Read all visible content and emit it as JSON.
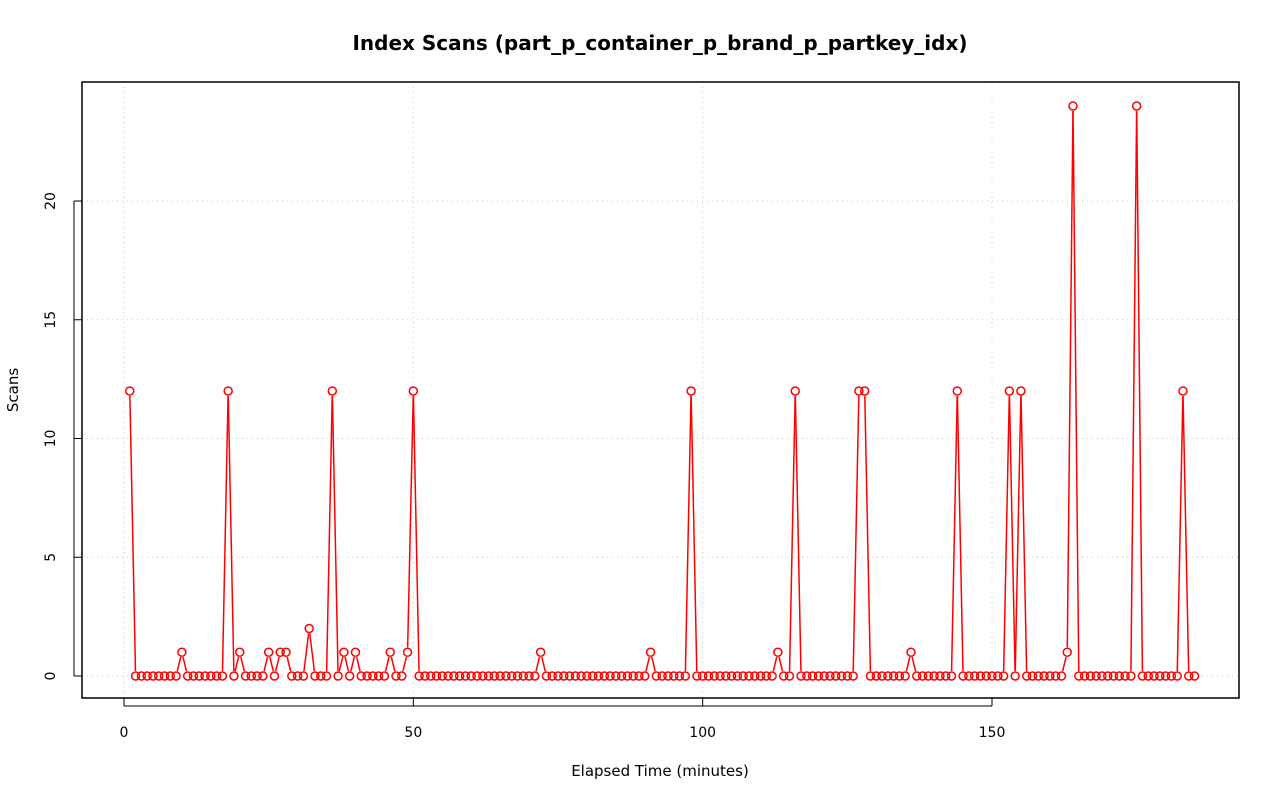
{
  "chart_data": {
    "type": "line",
    "title": "Index Scans (part_p_container_p_brand_p_partkey_idx)",
    "xlabel": "Elapsed Time (minutes)",
    "ylabel": "Scans",
    "xlim": [
      0,
      195
    ],
    "ylim": [
      0,
      24
    ],
    "grid": true,
    "x_ticks": [
      "0",
      "50",
      "100",
      "150"
    ],
    "x_tick_values": [
      0,
      50,
      100,
      150
    ],
    "y_ticks": [
      "0",
      "5",
      "10",
      "15",
      "20"
    ],
    "y_tick_values": [
      0,
      5,
      10,
      15,
      20
    ],
    "series": [
      {
        "color": "#ff0000",
        "x": [
          1,
          2,
          3,
          4,
          5,
          6,
          7,
          8,
          9,
          10,
          11,
          12,
          13,
          14,
          15,
          16,
          17,
          18,
          19,
          20,
          21,
          22,
          23,
          24,
          25,
          26,
          27,
          28,
          29,
          30,
          31,
          32,
          33,
          34,
          35,
          36,
          37,
          38,
          39,
          40,
          41,
          42,
          43,
          44,
          45,
          46,
          47,
          48,
          49,
          50,
          51,
          52,
          53,
          54,
          55,
          56,
          57,
          58,
          59,
          60,
          61,
          62,
          63,
          64,
          65,
          66,
          67,
          68,
          69,
          70,
          71,
          72,
          73,
          74,
          75,
          76,
          77,
          78,
          79,
          80,
          81,
          82,
          83,
          84,
          85,
          86,
          87,
          88,
          89,
          90,
          91,
          92,
          93,
          94,
          95,
          96,
          97,
          98,
          99,
          100,
          101,
          102,
          103,
          104,
          105,
          106,
          107,
          108,
          109,
          110,
          111,
          112,
          113,
          114,
          115,
          116,
          117,
          118,
          119,
          120,
          121,
          122,
          123,
          124,
          125,
          126,
          127,
          128,
          129,
          130,
          131,
          132,
          133,
          134,
          135,
          136,
          137,
          138,
          139,
          140,
          141,
          142,
          143,
          144,
          145,
          146,
          147,
          148,
          149,
          150,
          151,
          152,
          153,
          154,
          155,
          156,
          157,
          158,
          159,
          160,
          161,
          162,
          163,
          164,
          165,
          166,
          167,
          168,
          169,
          170,
          171,
          172,
          173,
          174,
          175,
          176,
          177,
          178,
          179,
          180,
          181,
          182,
          183,
          184,
          185
        ],
        "y": [
          12,
          0,
          0,
          0,
          0,
          0,
          0,
          0,
          0,
          1,
          0,
          0,
          0,
          0,
          0,
          0,
          0,
          12,
          0,
          1,
          0,
          0,
          0,
          0,
          1,
          0,
          1,
          1,
          0,
          0,
          0,
          2,
          0,
          0,
          0,
          12,
          0,
          1,
          0,
          1,
          0,
          0,
          0,
          0,
          0,
          1,
          0,
          0,
          1,
          12,
          0,
          0,
          0,
          0,
          0,
          0,
          0,
          0,
          0,
          0,
          0,
          0,
          0,
          0,
          0,
          0,
          0,
          0,
          0,
          0,
          0,
          1,
          0,
          0,
          0,
          0,
          0,
          0,
          0,
          0,
          0,
          0,
          0,
          0,
          0,
          0,
          0,
          0,
          0,
          0,
          1,
          0,
          0,
          0,
          0,
          0,
          0,
          12,
          0,
          0,
          0,
          0,
          0,
          0,
          0,
          0,
          0,
          0,
          0,
          0,
          0,
          0,
          1,
          0,
          0,
          12,
          0,
          0,
          0,
          0,
          0,
          0,
          0,
          0,
          0,
          0,
          12,
          12,
          0,
          0,
          0,
          0,
          0,
          0,
          0,
          1,
          0,
          0,
          0,
          0,
          0,
          0,
          0,
          12,
          0,
          0,
          0,
          0,
          0,
          0,
          0,
          0,
          12,
          0,
          12,
          0,
          0,
          0,
          0,
          0,
          0,
          0,
          1,
          24,
          0,
          0,
          0,
          0,
          0,
          0,
          0,
          0,
          0,
          0,
          24,
          0,
          0,
          0,
          0,
          0,
          0,
          0,
          12,
          0,
          0
        ]
      }
    ]
  }
}
